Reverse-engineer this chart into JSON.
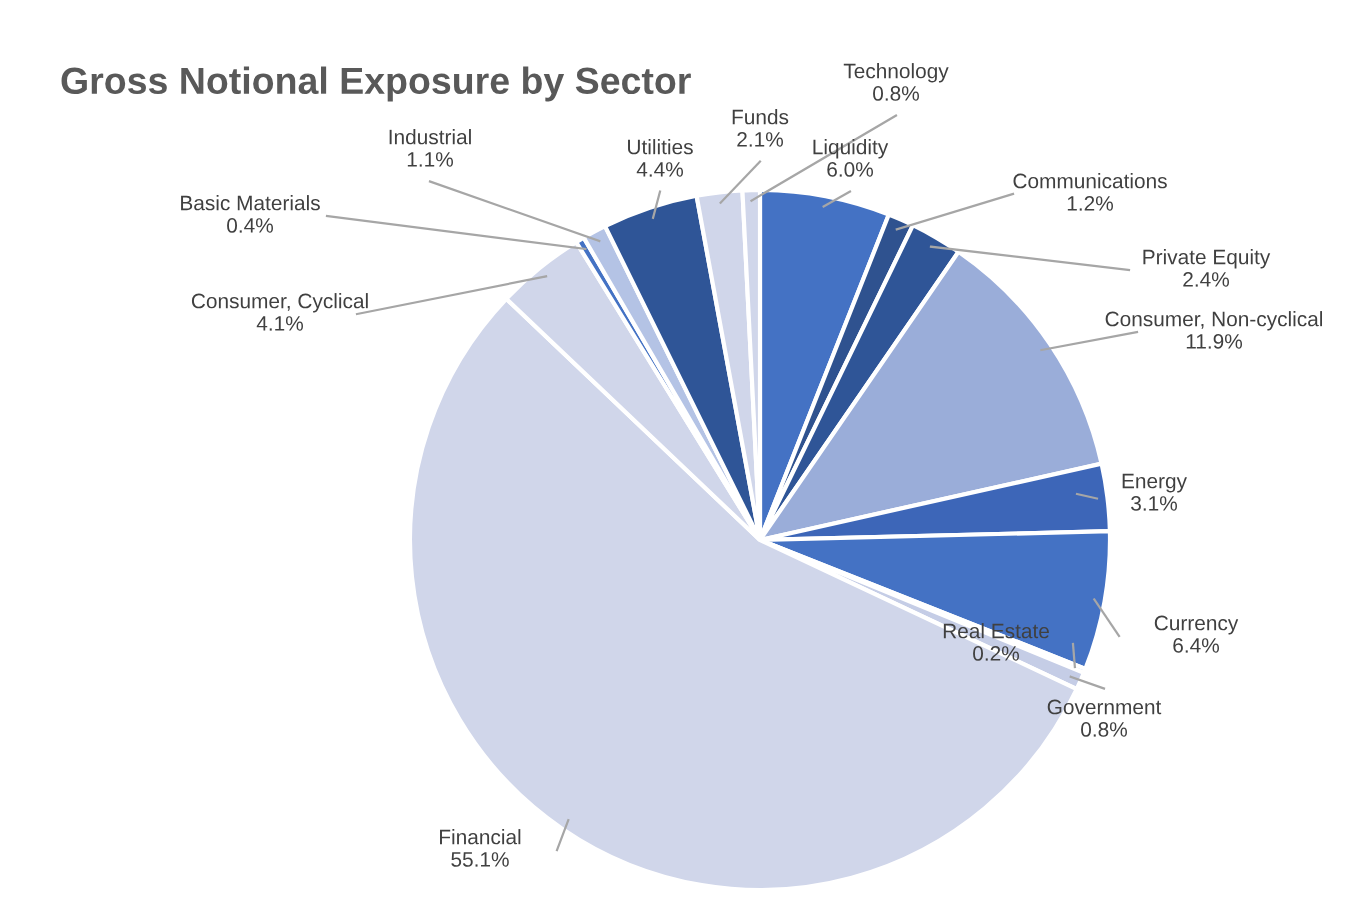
{
  "chart_data": {
    "type": "pie",
    "title": "Gross Notional Exposure by Sector",
    "categories": [
      "Liquidity",
      "Communications",
      "Private Equity",
      "Consumer, Non-cyclical",
      "Energy",
      "Currency",
      "Real Estate",
      "Government",
      "Financial",
      "Consumer, Cyclical",
      "Basic Materials",
      "Industrial",
      "Utilities",
      "Funds",
      "Technology"
    ],
    "values": [
      6.0,
      1.2,
      2.4,
      11.9,
      3.1,
      6.4,
      0.2,
      0.8,
      55.1,
      4.1,
      0.4,
      1.1,
      4.4,
      2.1,
      0.8
    ],
    "colors": [
      "#4472c4",
      "#2f528f",
      "#2f5597",
      "#9aadd9",
      "#3d66b8",
      "#4472c4",
      "#b4c7e7",
      "#c5cde6",
      "#d0d6ea",
      "#d0d6ea",
      "#4472c4",
      "#b4c3e5",
      "#2f5597",
      "#d0d6ea",
      "#d0d6ea"
    ],
    "value_labels": [
      "6.0%",
      "1.2%",
      "2.4%",
      "11.9%",
      "3.1%",
      "6.4%",
      "0.2%",
      "0.8%",
      "55.1%",
      "4.1%",
      "0.4%",
      "1.1%",
      "4.4%",
      "2.1%",
      "0.8%"
    ]
  }
}
